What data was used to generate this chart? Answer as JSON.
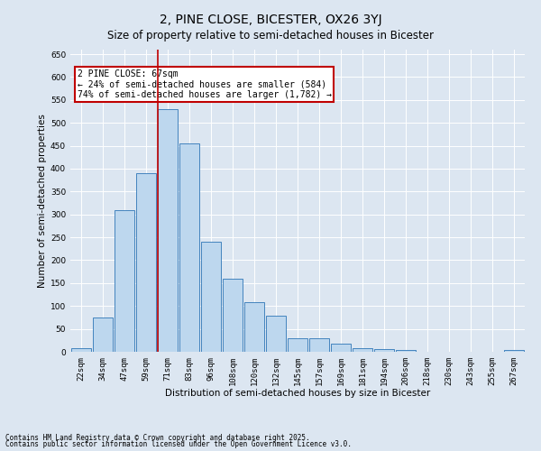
{
  "title": "2, PINE CLOSE, BICESTER, OX26 3YJ",
  "subtitle": "Size of property relative to semi-detached houses in Bicester",
  "xlabel": "Distribution of semi-detached houses by size in Bicester",
  "ylabel": "Number of semi-detached properties",
  "categories": [
    "22sqm",
    "34sqm",
    "47sqm",
    "59sqm",
    "71sqm",
    "83sqm",
    "96sqm",
    "108sqm",
    "120sqm",
    "132sqm",
    "145sqm",
    "157sqm",
    "169sqm",
    "181sqm",
    "194sqm",
    "206sqm",
    "218sqm",
    "230sqm",
    "243sqm",
    "255sqm",
    "267sqm"
  ],
  "values": [
    8,
    75,
    310,
    390,
    530,
    455,
    240,
    160,
    108,
    78,
    30,
    30,
    18,
    8,
    5,
    3,
    0,
    0,
    0,
    0,
    3
  ],
  "bar_color": "#bdd7ee",
  "bar_edge_color": "#2e75b6",
  "background_color": "#dce6f1",
  "plot_bg_color": "#dce6f1",
  "vline_color": "#c00000",
  "annotation_line1": "2 PINE CLOSE: 67sqm",
  "annotation_line2": "← 24% of semi-detached houses are smaller (584)",
  "annotation_line3": "74% of semi-detached houses are larger (1,782) →",
  "annotation_box_color": "#ffffff",
  "annotation_border_color": "#c00000",
  "ylim": [
    0,
    660
  ],
  "yticks": [
    0,
    50,
    100,
    150,
    200,
    250,
    300,
    350,
    400,
    450,
    500,
    550,
    600,
    650
  ],
  "footnote1": "Contains HM Land Registry data © Crown copyright and database right 2025.",
  "footnote2": "Contains public sector information licensed under the Open Government Licence v3.0.",
  "title_fontsize": 10,
  "subtitle_fontsize": 8.5,
  "label_fontsize": 7.5,
  "tick_fontsize": 6.5,
  "annotation_fontsize": 7
}
